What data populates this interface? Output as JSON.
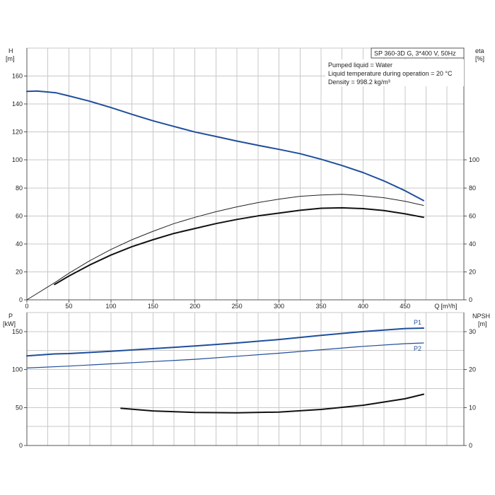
{
  "chart_data": [
    {
      "type": "line",
      "panel": "head-efficiency",
      "title": "SP 360-3D G, 3*400 V, 50Hz",
      "info_lines": [
        "Pumped liquid = Water",
        "Liquid temperature during operation = 20 °C",
        "Density = 998.2 kg/m³"
      ],
      "xlabel": "Q [m³/h]",
      "x_label_name": "Q",
      "x_label_unit": "[m³/h]",
      "xlim": [
        0,
        520
      ],
      "x_ticks": [
        0,
        50,
        100,
        150,
        200,
        250,
        300,
        350,
        400,
        450
      ],
      "y_left_label_name": "H",
      "y_left_label_unit": "[m]",
      "y_left_lim": [
        0,
        180
      ],
      "y_left_ticks": [
        0,
        20,
        40,
        60,
        80,
        100,
        120,
        140,
        160
      ],
      "y_right_label_name": "eta",
      "y_right_label_unit": "[%]",
      "y_right_lim": [
        0,
        180
      ],
      "y_right_ticks": [
        0,
        20,
        40,
        60,
        80,
        100
      ],
      "grid": true,
      "series": [
        {
          "id": "H",
          "color": "#1f4e9b",
          "points": [
            [
              0,
              149
            ],
            [
              12,
              149.3
            ],
            [
              25,
              148.6
            ],
            [
              35,
              148
            ],
            [
              50,
              145.8
            ],
            [
              75,
              142
            ],
            [
              100,
              137.5
            ],
            [
              125,
              132.6
            ],
            [
              150,
              128
            ],
            [
              175,
              124
            ],
            [
              200,
              120
            ],
            [
              225,
              116.8
            ],
            [
              250,
              113.5
            ],
            [
              275,
              110.5
            ],
            [
              300,
              107.6
            ],
            [
              325,
              104.5
            ],
            [
              350,
              100.5
            ],
            [
              375,
              96
            ],
            [
              400,
              91
            ],
            [
              425,
              85
            ],
            [
              450,
              78
            ],
            [
              472,
              71
            ]
          ]
        },
        {
          "id": "eta-thin",
          "color": "#222222",
          "points": [
            [
              0,
              0
            ],
            [
              35,
              13
            ],
            [
              50,
              19
            ],
            [
              75,
              28
            ],
            [
              100,
              36
            ],
            [
              125,
              43
            ],
            [
              150,
              49
            ],
            [
              175,
              54.5
            ],
            [
              200,
              59
            ],
            [
              225,
              63
            ],
            [
              250,
              66.5
            ],
            [
              275,
              69.5
            ],
            [
              300,
              72
            ],
            [
              325,
              74
            ],
            [
              350,
              75
            ],
            [
              375,
              75.5
            ],
            [
              400,
              74.5
            ],
            [
              425,
              73
            ],
            [
              450,
              70.5
            ],
            [
              472,
              67.5
            ]
          ]
        },
        {
          "id": "eta-bold",
          "color": "#111111",
          "points": [
            [
              33,
              11
            ],
            [
              50,
              17
            ],
            [
              75,
              25
            ],
            [
              100,
              32
            ],
            [
              125,
              38
            ],
            [
              150,
              43
            ],
            [
              175,
              47.5
            ],
            [
              200,
              51
            ],
            [
              225,
              54.5
            ],
            [
              250,
              57.5
            ],
            [
              275,
              60
            ],
            [
              300,
              62
            ],
            [
              325,
              64
            ],
            [
              350,
              65.5
            ],
            [
              375,
              65.8
            ],
            [
              400,
              65.2
            ],
            [
              425,
              63.8
            ],
            [
              450,
              61.5
            ],
            [
              472,
              59
            ]
          ]
        }
      ]
    },
    {
      "type": "line",
      "panel": "power-npsh",
      "xlim": [
        0,
        520
      ],
      "y_left_label_name": "P",
      "y_left_label_unit": "[kW]",
      "y_left_lim": [
        0,
        175
      ],
      "y_left_ticks": [
        0,
        50,
        100,
        150
      ],
      "y_right_label_name": "NPSH",
      "y_right_label_unit": "[m]",
      "y_right_lim": [
        0,
        35
      ],
      "y_right_ticks": [
        0,
        10,
        20,
        30
      ],
      "grid": true,
      "series": [
        {
          "id": "P1",
          "name": "P1",
          "axis": "left",
          "color": "#1f4e9b",
          "points": [
            [
              0,
              118
            ],
            [
              33,
              120.5
            ],
            [
              50,
              121
            ],
            [
              100,
              124
            ],
            [
              150,
              127.5
            ],
            [
              200,
              131
            ],
            [
              250,
              135
            ],
            [
              300,
              139.5
            ],
            [
              350,
              145
            ],
            [
              400,
              150
            ],
            [
              450,
              154
            ],
            [
              472,
              154.5
            ]
          ]
        },
        {
          "id": "P2",
          "name": "P2",
          "axis": "left",
          "color": "#1f4e9b",
          "points": [
            [
              0,
              102
            ],
            [
              50,
              104.5
            ],
            [
              100,
              107.5
            ],
            [
              150,
              110.5
            ],
            [
              200,
              113.5
            ],
            [
              250,
              117.5
            ],
            [
              300,
              121.5
            ],
            [
              350,
              126
            ],
            [
              400,
              130.5
            ],
            [
              450,
              134
            ],
            [
              472,
              135
            ]
          ]
        },
        {
          "id": "NPSH",
          "axis": "right",
          "color": "#111111",
          "points": [
            [
              112,
              9.8
            ],
            [
              150,
              9.1
            ],
            [
              200,
              8.7
            ],
            [
              250,
              8.6
            ],
            [
              300,
              8.8
            ],
            [
              350,
              9.5
            ],
            [
              400,
              10.6
            ],
            [
              450,
              12.3
            ],
            [
              472,
              13.5
            ]
          ]
        }
      ]
    }
  ]
}
